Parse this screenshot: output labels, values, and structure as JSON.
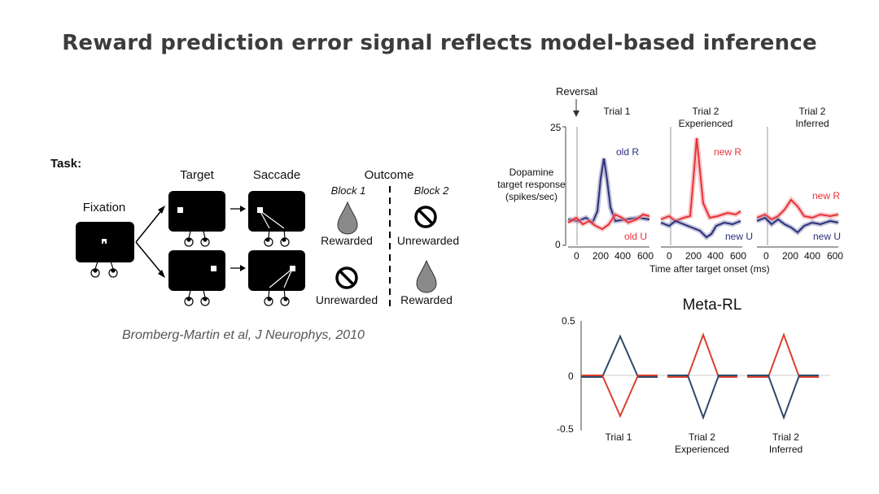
{
  "slide": {
    "title": "Reward prediction error signal reflects model-based inference"
  },
  "task": {
    "heading": "Task:",
    "labels": {
      "fixation": "Fixation",
      "target": "Target",
      "saccade": "Saccade",
      "outcome": "Outcome",
      "block1": "Block 1",
      "block2": "Block 2"
    },
    "outcomes": {
      "top_block1": "Rewarded",
      "top_block2": "Unrewarded",
      "bottom_block1": "Unrewarded",
      "bottom_block2": "Rewarded"
    },
    "citation": "Bromberg-Martin et al, J Neurophys, 2010"
  },
  "dopamine_panel": {
    "annotation": "Reversal",
    "ylabel_lines": [
      "Dopamine",
      "target response",
      "(spikes/sec)"
    ],
    "ytick_top": "25",
    "ytick_bottom": "0",
    "xlabel": "Time after target onset (ms)",
    "xticks": [
      "0",
      "200",
      "400",
      "600"
    ],
    "panels": [
      {
        "title_lines": [
          "Trial 1",
          ""
        ],
        "labels": [
          "old R",
          "old U"
        ]
      },
      {
        "title_lines": [
          "Trial 2",
          "Experienced"
        ],
        "labels": [
          "new R",
          "new U"
        ]
      },
      {
        "title_lines": [
          "Trial 2",
          "Inferred"
        ],
        "labels": [
          "new R",
          "new U"
        ]
      }
    ]
  },
  "meta_rl": {
    "title": "Meta-RL",
    "yticks": [
      "0.5",
      "0",
      "-0.5"
    ],
    "panels": [
      {
        "label_lines": [
          "Trial 1",
          ""
        ]
      },
      {
        "label_lines": [
          "Trial 2",
          "Experienced"
        ]
      },
      {
        "label_lines": [
          "Trial 2",
          "Inferred"
        ]
      }
    ]
  },
  "colors": {
    "title": "#3c3c3c",
    "rewarded_red": "#e8313a",
    "unrewarded_blue": "#2b2f7a",
    "meta_blue": "#2e4a6b",
    "meta_red": "#d9412b",
    "drop_gray": "#8a8a8a"
  }
}
